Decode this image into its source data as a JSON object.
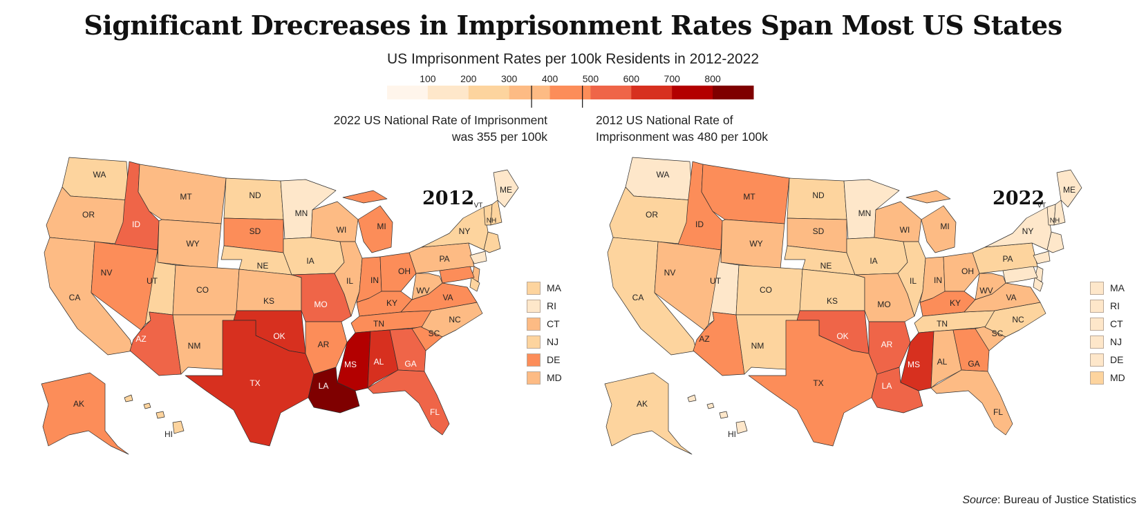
{
  "title": "Significant Drecreases in Imprisonment Rates Span Most US States",
  "subtitle": "US Imprisonment Rates per 100k Residents in 2012-2022",
  "scale": {
    "ticks": [
      "100",
      "200",
      "300",
      "400",
      "500",
      "600",
      "700",
      "800"
    ],
    "colors": [
      "#fff5eb",
      "#fee7ca",
      "#fdd49e",
      "#fdbb84",
      "#fc8d59",
      "#ef6548",
      "#d7301f",
      "#b30000",
      "#7f0000"
    ],
    "markers": [
      355,
      480
    ]
  },
  "annotations": {
    "rate_2022": "2022 US National Rate of Imprisonment was 355 per 100k",
    "rate_2012": "2012 US National Rate of Imprisonment was 480 per 100k"
  },
  "maps": [
    {
      "year": "2012",
      "states": {
        "WA": "#fdd49e",
        "OR": "#fdbb84",
        "CA": "#fdbb84",
        "ID": "#ef6548",
        "NV": "#fc8d59",
        "MT": "#fdbb84",
        "WY": "#fdbb84",
        "UT": "#fdd49e",
        "AZ": "#ef6548",
        "CO": "#fdbb84",
        "NM": "#fdbb84",
        "ND": "#fdd49e",
        "SD": "#fc8d59",
        "NE": "#fdd49e",
        "KS": "#fdbb84",
        "OK": "#d7301f",
        "TX": "#d7301f",
        "MN": "#fee7ca",
        "IA": "#fdd49e",
        "MO": "#ef6548",
        "AR": "#fc8d59",
        "LA": "#7f0000",
        "WI": "#fdbb84",
        "IL": "#fdbb84",
        "MI": "#fc8d59",
        "IN": "#fc8d59",
        "OH": "#fc8d59",
        "KY": "#fc8d59",
        "TN": "#fc8d59",
        "MS": "#b30000",
        "AL": "#d7301f",
        "GA": "#ef6548",
        "FL": "#ef6548",
        "SC": "#fc8d59",
        "NC": "#fdbb84",
        "VA": "#fc8d59",
        "WV": "#fdbb84",
        "PA": "#fdbb84",
        "NY": "#fdd49e",
        "ME": "#fee7ca",
        "VT": "#fdd49e",
        "NH": "#fdd49e",
        "AK": "#fc8d59",
        "HI": "#fdd49e"
      },
      "northeast": [
        {
          "label": "MA",
          "color": "#fdd49e"
        },
        {
          "label": "RI",
          "color": "#fee7ca"
        },
        {
          "label": "CT",
          "color": "#fdbb84"
        },
        {
          "label": "NJ",
          "color": "#fdd49e"
        },
        {
          "label": "DE",
          "color": "#fc8d59"
        },
        {
          "label": "MD",
          "color": "#fdbb84"
        }
      ]
    },
    {
      "year": "2022",
      "states": {
        "WA": "#fee7ca",
        "OR": "#fdd49e",
        "CA": "#fdd49e",
        "ID": "#fc8d59",
        "NV": "#fdbb84",
        "MT": "#fc8d59",
        "WY": "#fdbb84",
        "UT": "#fee7ca",
        "AZ": "#fc8d59",
        "CO": "#fdd49e",
        "NM": "#fdd49e",
        "ND": "#fdd49e",
        "SD": "#fdbb84",
        "NE": "#fdd49e",
        "KS": "#fdd49e",
        "OK": "#ef6548",
        "TX": "#fc8d59",
        "MN": "#fee7ca",
        "IA": "#fdd49e",
        "MO": "#fdbb84",
        "AR": "#ef6548",
        "LA": "#ef6548",
        "WI": "#fdbb84",
        "IL": "#fdd49e",
        "MI": "#fdbb84",
        "IN": "#fdbb84",
        "OH": "#fdbb84",
        "KY": "#fc8d59",
        "TN": "#fdd49e",
        "MS": "#d7301f",
        "AL": "#fdbb84",
        "GA": "#fc8d59",
        "FL": "#fdbb84",
        "SC": "#fdbb84",
        "NC": "#fdd49e",
        "VA": "#fdbb84",
        "WV": "#fdbb84",
        "PA": "#fdd49e",
        "NY": "#fee7ca",
        "ME": "#fee7ca",
        "VT": "#fee7ca",
        "NH": "#fee7ca",
        "AK": "#fdd49e",
        "HI": "#fee7ca"
      },
      "northeast": [
        {
          "label": "MA",
          "color": "#fee7ca"
        },
        {
          "label": "RI",
          "color": "#fee7ca"
        },
        {
          "label": "CT",
          "color": "#fee7ca"
        },
        {
          "label": "NJ",
          "color": "#fee7ca"
        },
        {
          "label": "DE",
          "color": "#fee7ca"
        },
        {
          "label": "MD",
          "color": "#fdd49e"
        }
      ]
    }
  ],
  "source": {
    "label": "Source",
    "text": ": Bureau of Justice Statistics"
  }
}
